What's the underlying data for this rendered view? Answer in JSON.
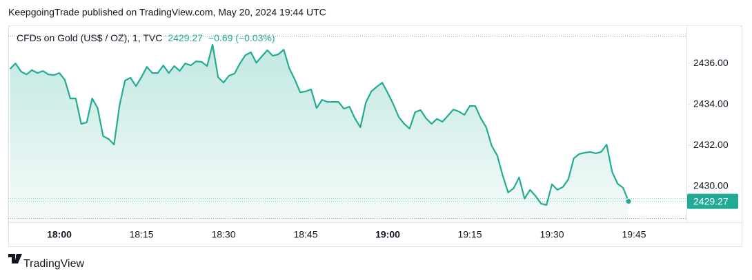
{
  "caption": "KeepgoingTrade published on TradingView.com, May 20, 2024 19:44 UTC",
  "brand": "TradingView",
  "chart_data": {
    "type": "line",
    "title": "CFDs on Gold (US$ / OZ), 1, TVC",
    "change": "−0.69 (−0.03%)",
    "x": [
      "17:51",
      "17:52",
      "17:53",
      "17:54",
      "17:55",
      "17:56",
      "17:57",
      "17:58",
      "17:59",
      "18:00",
      "18:01",
      "18:02",
      "18:03",
      "18:04",
      "18:05",
      "18:06",
      "18:07",
      "18:08",
      "18:09",
      "18:10",
      "18:11",
      "18:12",
      "18:13",
      "18:14",
      "18:15",
      "18:16",
      "18:17",
      "18:18",
      "18:19",
      "18:20",
      "18:21",
      "18:22",
      "18:23",
      "18:24",
      "18:25",
      "18:26",
      "18:27",
      "18:28",
      "18:29",
      "18:30",
      "18:31",
      "18:32",
      "18:33",
      "18:34",
      "18:35",
      "18:36",
      "18:37",
      "18:38",
      "18:39",
      "18:40",
      "18:41",
      "18:42",
      "18:43",
      "18:44",
      "18:45",
      "18:46",
      "18:47",
      "18:48",
      "18:49",
      "18:50",
      "18:51",
      "18:52",
      "18:53",
      "18:54",
      "18:55",
      "18:56",
      "18:57",
      "18:58",
      "18:59",
      "19:00",
      "19:01",
      "19:02",
      "19:03",
      "19:04",
      "19:05",
      "19:06",
      "19:07",
      "19:08",
      "19:09",
      "19:10",
      "19:11",
      "19:12",
      "19:13",
      "19:14",
      "19:15",
      "19:16",
      "19:17",
      "19:18",
      "19:19",
      "19:20",
      "19:21",
      "19:22",
      "19:23",
      "19:24",
      "19:25",
      "19:26",
      "19:27",
      "19:28",
      "19:29",
      "19:30",
      "19:31",
      "19:32",
      "19:33",
      "19:34",
      "19:35",
      "19:36",
      "19:37",
      "19:38",
      "19:39",
      "19:40",
      "19:41",
      "19:42",
      "19:43",
      "19:44"
    ],
    "series": [
      {
        "name": "CFDs on Gold (US$ / OZ)",
        "color": "#22ab94",
        "values": [
          2435.73,
          2436.0,
          2435.6,
          2435.46,
          2435.67,
          2435.53,
          2435.63,
          2435.46,
          2435.43,
          2435.53,
          2435.2,
          2434.29,
          2434.29,
          2433.05,
          2433.12,
          2434.29,
          2433.82,
          2432.45,
          2432.31,
          2432.04,
          2433.96,
          2435.16,
          2435.3,
          2434.89,
          2435.33,
          2435.83,
          2435.53,
          2435.53,
          2435.9,
          2435.53,
          2435.87,
          2435.63,
          2436.0,
          2435.9,
          2436.1,
          2436.07,
          2435.87,
          2436.91,
          2435.33,
          2435.06,
          2435.4,
          2435.5,
          2436.0,
          2436.4,
          2436.54,
          2436.03,
          2436.34,
          2436.64,
          2436.37,
          2436.44,
          2436.67,
          2435.77,
          2435.23,
          2434.59,
          2434.63,
          2434.73,
          2433.82,
          2434.22,
          2434.12,
          2434.12,
          2434.12,
          2433.79,
          2433.89,
          2433.32,
          2432.88,
          2434.09,
          2434.63,
          2434.86,
          2435.06,
          2434.56,
          2434.02,
          2433.39,
          2433.05,
          2432.82,
          2433.62,
          2433.72,
          2433.32,
          2433.05,
          2433.29,
          2433.15,
          2433.45,
          2433.75,
          2433.65,
          2433.49,
          2433.92,
          2433.92,
          2433.32,
          2432.88,
          2431.98,
          2431.51,
          2430.54,
          2429.7,
          2429.9,
          2430.44,
          2429.4,
          2429.83,
          2429.53,
          2429.16,
          2429.09,
          2430.1,
          2429.83,
          2429.97,
          2430.34,
          2431.37,
          2431.58,
          2431.64,
          2431.68,
          2431.61,
          2431.68,
          2432.04,
          2430.7,
          2430.13,
          2429.93,
          2429.27
        ]
      }
    ],
    "xticks": [
      "18:00",
      "18:15",
      "18:30",
      "18:45",
      "19:00",
      "19:15",
      "19:30",
      "19:45"
    ],
    "ylim": [
      2428.25,
      2437.85
    ],
    "yticks": [
      {
        "value": 2430,
        "label": "2430.00"
      },
      {
        "value": 2432,
        "label": "2432.00"
      },
      {
        "value": 2434,
        "label": "2434.00"
      },
      {
        "value": 2436,
        "label": "2436.00"
      }
    ]
  }
}
